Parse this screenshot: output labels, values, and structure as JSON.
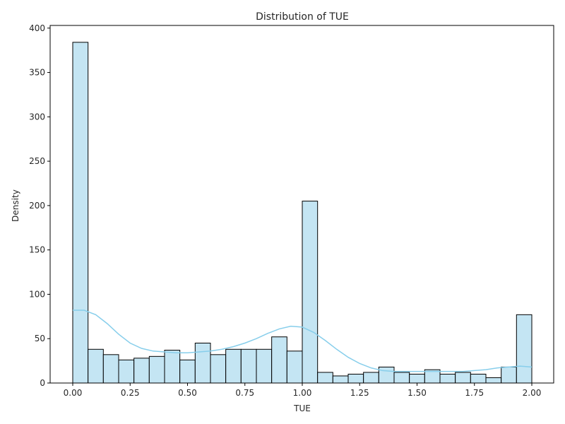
{
  "chart_data": {
    "type": "bar",
    "title": "Distribution of TUE",
    "xlabel": "TUE",
    "ylabel": "Density",
    "xlim": [
      -0.0667,
      2.0993
    ],
    "ylim": [
      0,
      403
    ],
    "x_ticks": [
      "0.00",
      "0.25",
      "0.50",
      "0.75",
      "1.00",
      "1.25",
      "1.50",
      "1.75",
      "2.00"
    ],
    "y_ticks": [
      "0",
      "50",
      "100",
      "150",
      "200",
      "250",
      "300",
      "350",
      "400"
    ],
    "bin_edges": [
      0,
      0.0667,
      0.1333,
      0.2,
      0.2667,
      0.3333,
      0.4,
      0.4667,
      0.5333,
      0.6,
      0.6667,
      0.7333,
      0.8,
      0.8667,
      0.9333,
      1.0,
      1.0667,
      1.1333,
      1.2,
      1.2667,
      1.3333,
      1.4,
      1.4667,
      1.5333,
      1.6,
      1.6667,
      1.7333,
      1.8,
      1.8667,
      1.9333,
      2.0
    ],
    "values": [
      384,
      38,
      32,
      26,
      28,
      30,
      37,
      26,
      45,
      32,
      38,
      38,
      38,
      52,
      36,
      205,
      12,
      8,
      10,
      12,
      18,
      12,
      10,
      15,
      10,
      12,
      10,
      6,
      18,
      77
    ],
    "kde": {
      "x": [
        0,
        0.05,
        0.1,
        0.15,
        0.2,
        0.25,
        0.3,
        0.35,
        0.4,
        0.45,
        0.5,
        0.55,
        0.6,
        0.65,
        0.7,
        0.75,
        0.8,
        0.85,
        0.9,
        0.95,
        1.0,
        1.05,
        1.1,
        1.15,
        1.2,
        1.25,
        1.3,
        1.35,
        1.4,
        1.45,
        1.5,
        1.55,
        1.6,
        1.65,
        1.7,
        1.75,
        1.8,
        1.85,
        1.9,
        1.95,
        2.0
      ],
      "y": [
        82,
        82,
        77,
        67,
        55,
        45,
        39,
        36,
        35,
        34,
        34,
        35,
        36,
        38,
        41,
        45,
        50,
        56,
        61,
        64,
        63,
        57,
        48,
        38,
        29,
        22,
        17,
        14,
        13,
        13,
        13,
        13,
        13,
        13,
        13,
        14,
        15,
        17,
        18,
        19,
        18
      ]
    },
    "bar_fill": "#c4e5f3",
    "bar_edge": "#000000",
    "kde_color": "#87ceeb",
    "grid": false,
    "legend": "none"
  }
}
